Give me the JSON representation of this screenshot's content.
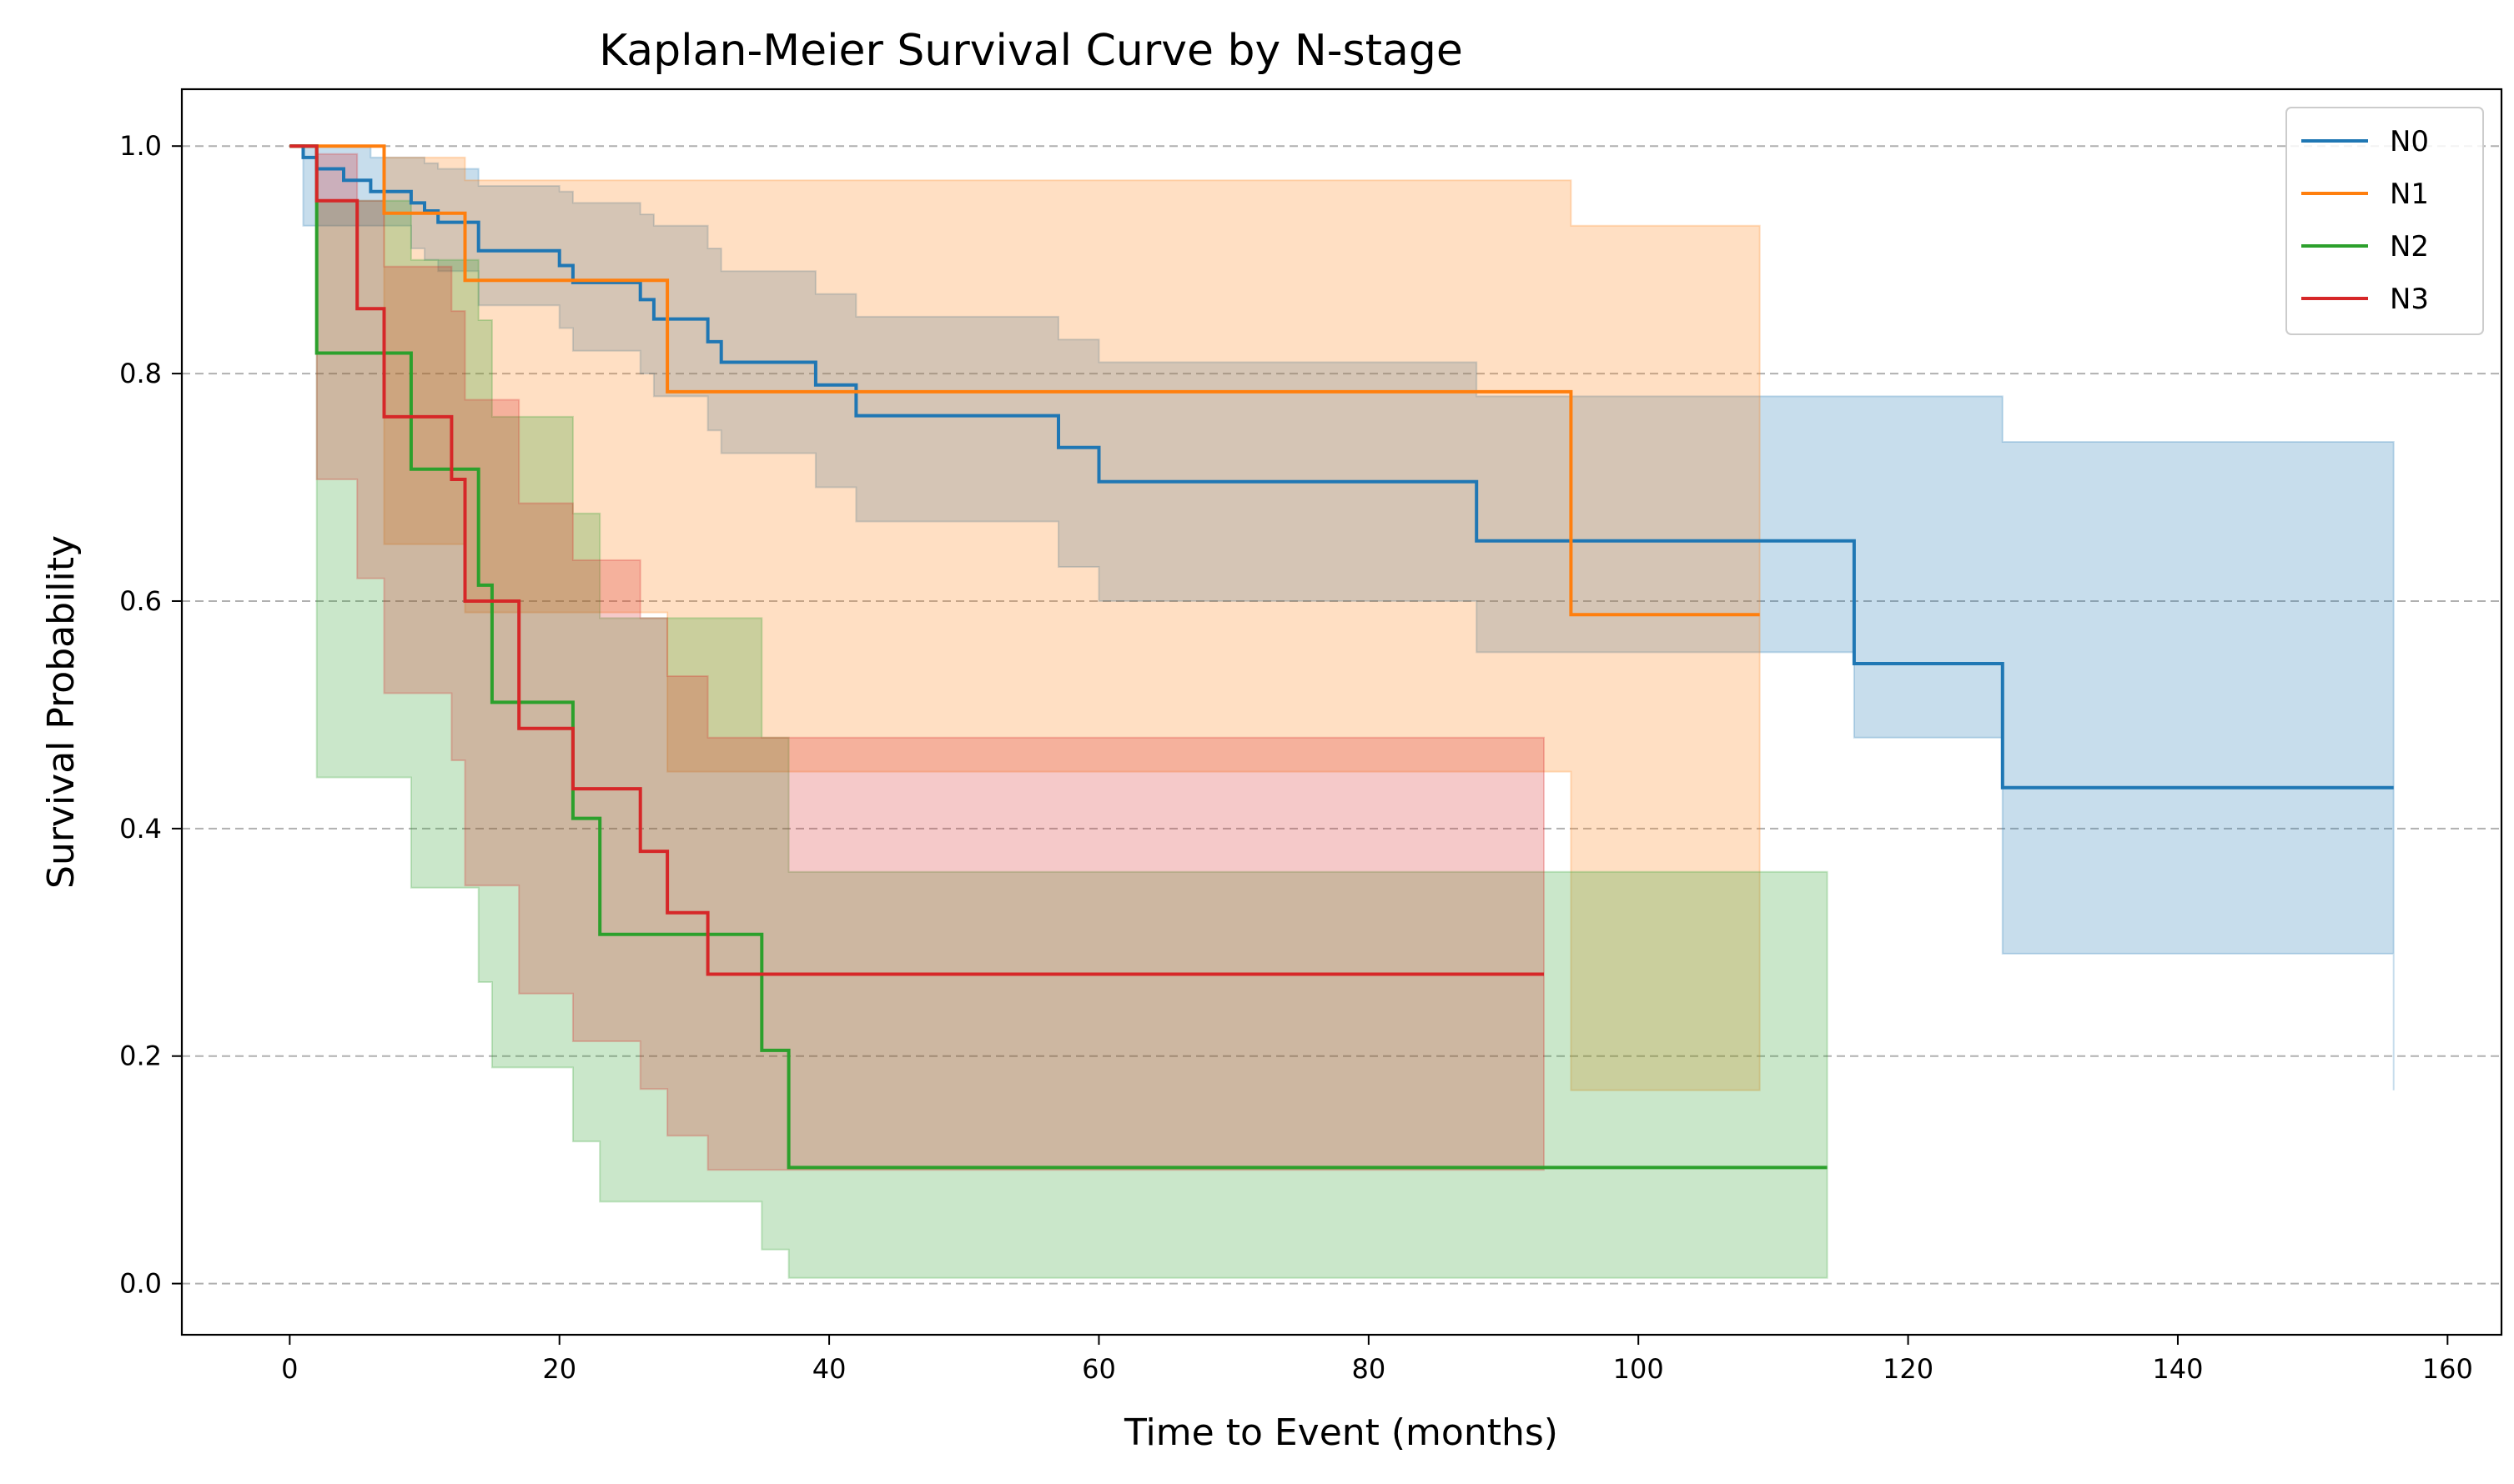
{
  "chart_data": {
    "type": "line",
    "subtype": "kaplan-meier step curves with confidence bands",
    "title": "Kaplan-Meier Survival Curve by N-stage",
    "xlabel": "Time to Event (months)",
    "ylabel": "Survival Probability",
    "xlim": [
      -8,
      164
    ],
    "ylim": [
      -0.045,
      1.05
    ],
    "xticks": [
      0,
      20,
      40,
      60,
      80,
      100,
      120,
      140,
      160
    ],
    "yticks": [
      0.0,
      0.2,
      0.4,
      0.6,
      0.8,
      1.0
    ],
    "xtick_labels": [
      "0",
      "20",
      "40",
      "60",
      "80",
      "100",
      "120",
      "140",
      "160"
    ],
    "ytick_labels": [
      "0.0",
      "0.2",
      "0.4",
      "0.6",
      "0.8",
      "1.0"
    ],
    "grid": "y-dashed",
    "legend_position": "top-right",
    "series": [
      {
        "name": "N0",
        "color": "#1f77b4",
        "x": [
          0,
          1,
          2,
          4,
          6,
          9,
          10,
          11,
          14,
          20,
          21,
          26,
          27,
          31,
          32,
          39,
          42,
          57,
          60,
          88,
          116,
          127,
          156
        ],
        "y": [
          1.0,
          0.99,
          0.98,
          0.97,
          0.96,
          0.95,
          0.943,
          0.933,
          0.908,
          0.895,
          0.88,
          0.865,
          0.848,
          0.828,
          0.81,
          0.79,
          0.763,
          0.735,
          0.705,
          0.653,
          0.545,
          0.436,
          0.436
        ],
        "lower": [
          1.0,
          0.93,
          0.93,
          0.93,
          0.93,
          0.91,
          0.9,
          0.89,
          0.86,
          0.84,
          0.82,
          0.8,
          0.78,
          0.75,
          0.73,
          0.7,
          0.67,
          0.63,
          0.6,
          0.555,
          0.48,
          0.29,
          0.17
        ],
        "upper": [
          1.0,
          1.0,
          1.0,
          1.0,
          0.99,
          0.99,
          0.985,
          0.98,
          0.965,
          0.96,
          0.95,
          0.94,
          0.93,
          0.91,
          0.89,
          0.87,
          0.85,
          0.83,
          0.81,
          0.78,
          0.78,
          0.74,
          0.67
        ]
      },
      {
        "name": "N1",
        "color": "#ff7f0e",
        "x": [
          0,
          7,
          13,
          28,
          95,
          109
        ],
        "y": [
          1.0,
          0.941,
          0.882,
          0.784,
          0.588,
          0.588
        ],
        "lower": [
          1.0,
          0.65,
          0.59,
          0.45,
          0.17,
          0.17
        ],
        "upper": [
          1.0,
          0.99,
          0.97,
          0.97,
          0.93,
          0.85
        ]
      },
      {
        "name": "N2",
        "color": "#2ca02c",
        "x": [
          0,
          2,
          9,
          14,
          15,
          21,
          23,
          35,
          37,
          114
        ],
        "y": [
          1.0,
          0.818,
          0.716,
          0.614,
          0.511,
          0.409,
          0.307,
          0.205,
          0.102,
          0.102
        ],
        "lower": [
          1.0,
          0.445,
          0.348,
          0.265,
          0.19,
          0.125,
          0.072,
          0.03,
          0.005,
          0.005
        ],
        "upper": [
          1.0,
          0.952,
          0.9,
          0.847,
          0.762,
          0.677,
          0.585,
          0.48,
          0.362,
          0.362
        ]
      },
      {
        "name": "N3",
        "color": "#d62728",
        "x": [
          0,
          2,
          5,
          7,
          12,
          13,
          17,
          21,
          26,
          28,
          31,
          93
        ],
        "y": [
          1.0,
          0.952,
          0.857,
          0.762,
          0.707,
          0.6,
          0.488,
          0.435,
          0.38,
          0.326,
          0.272,
          0.272
        ],
        "lower": [
          1.0,
          0.707,
          0.62,
          0.519,
          0.46,
          0.35,
          0.255,
          0.213,
          0.171,
          0.13,
          0.1,
          0.1
        ],
        "upper": [
          1.0,
          0.993,
          0.952,
          0.894,
          0.855,
          0.777,
          0.686,
          0.636,
          0.585,
          0.534,
          0.48,
          0.48
        ]
      }
    ]
  }
}
